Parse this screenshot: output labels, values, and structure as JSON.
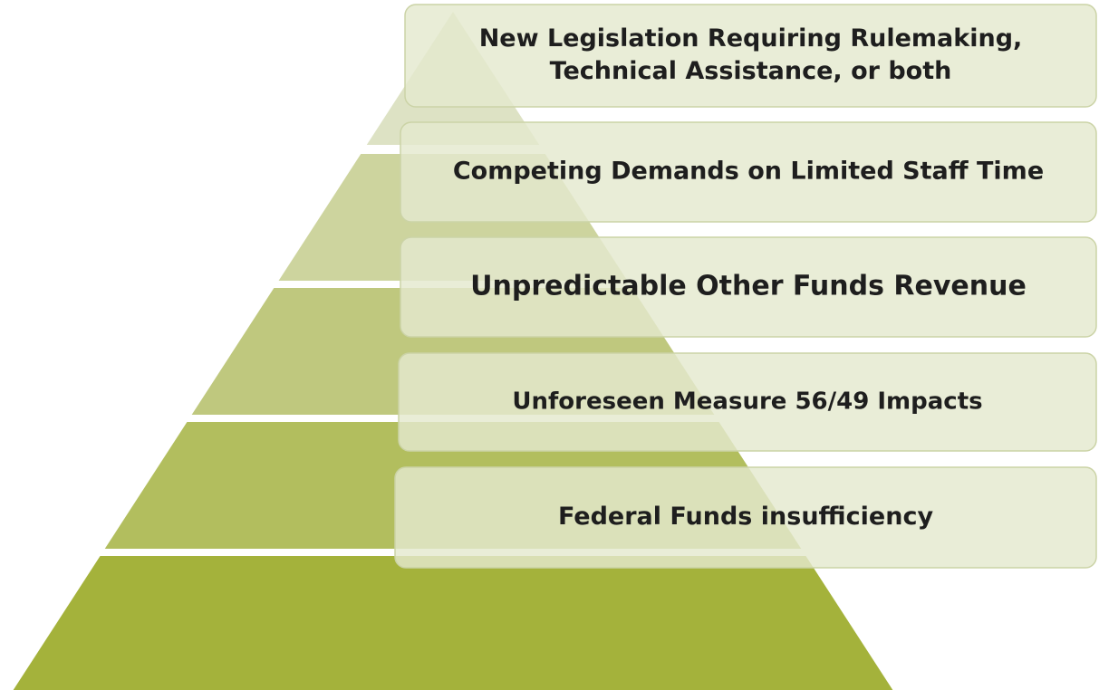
{
  "pyramid": {
    "items": [
      {
        "lines": [
          "New Legislation Requiring Rulemaking,",
          "Technical Assistance, or both"
        ]
      },
      {
        "lines": [
          "Competing Demands on Limited Staff Time"
        ]
      },
      {
        "lines": [
          "Unpredictable Other Funds Revenue"
        ]
      },
      {
        "lines": [
          "Unforeseen Measure 56/49 Impacts"
        ]
      },
      {
        "lines": [
          "Federal Funds insufficiency"
        ]
      }
    ]
  }
}
